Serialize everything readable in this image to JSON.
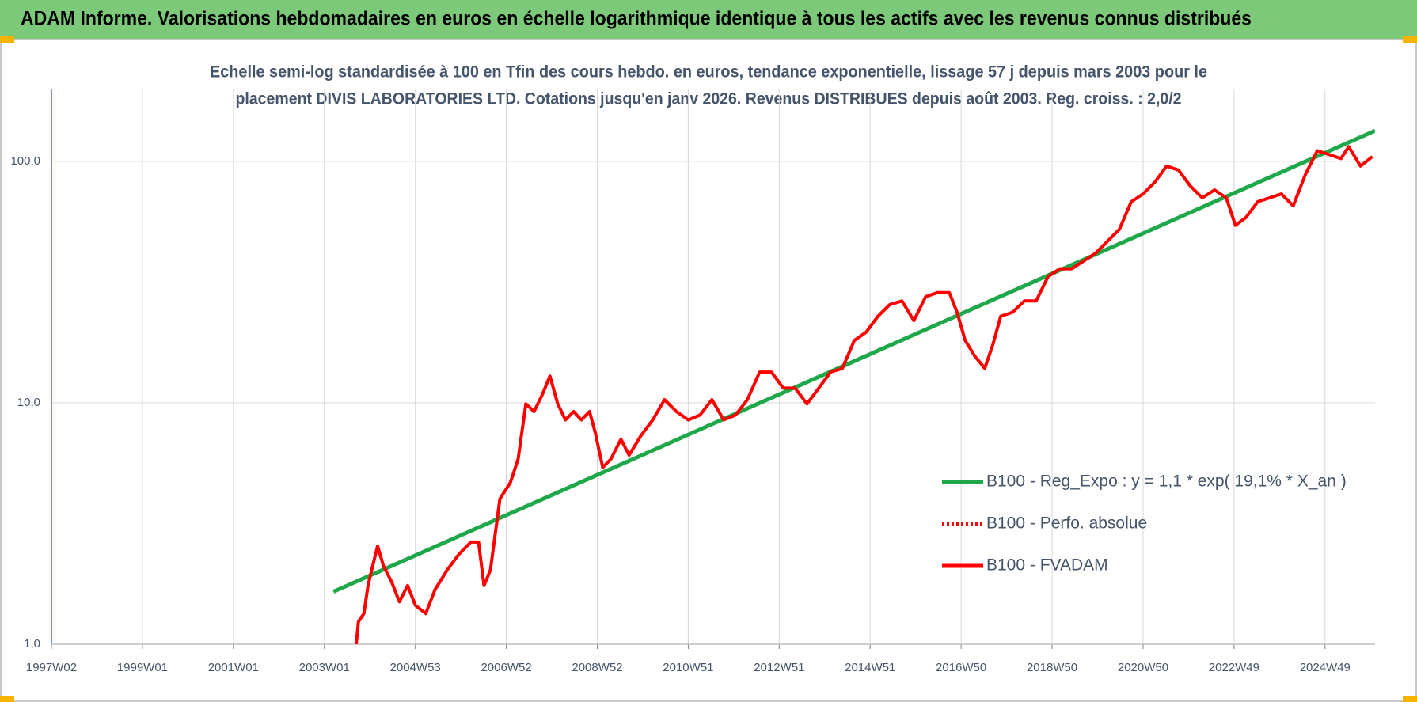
{
  "header_title": "ADAM Informe. Valorisations hebdomadaires en euros en échelle logarithmique identique à tous les actifs avec les revenus connus distribués",
  "chart_data": {
    "type": "line",
    "subtitle": [
      "Echelle semi-log standardisée à 100 en Tfin des cours hebdo. en euros, tendance exponentielle, lissage 57 j depuis mars 2003 pour le",
      "placement DIVIS LABORATORIES  LTD. Cotations jusqu'en janv 2026. Revenus DISTRIBUES depuis août 2003. Reg. croiss. : 2,0/2"
    ],
    "log_y": true,
    "grid": true,
    "legend": "right",
    "xlim": [
      1997,
      2026.1
    ],
    "xticks": [
      {
        "value": 1997,
        "label": "1997W02"
      },
      {
        "value": 1999,
        "label": "1999W01"
      },
      {
        "value": 2001,
        "label": "2001W01"
      },
      {
        "value": 2003,
        "label": "2003W01"
      },
      {
        "value": 2005,
        "label": "2004W53"
      },
      {
        "value": 2007,
        "label": "2006W52"
      },
      {
        "value": 2009,
        "label": "2008W52"
      },
      {
        "value": 2011,
        "label": "2010W51"
      },
      {
        "value": 2013,
        "label": "2012W51"
      },
      {
        "value": 2015,
        "label": "2014W51"
      },
      {
        "value": 2017,
        "label": "2016W50"
      },
      {
        "value": 2019,
        "label": "2018W50"
      },
      {
        "value": 2021,
        "label": "2020W50"
      },
      {
        "value": 2023,
        "label": "2022W49"
      },
      {
        "value": 2025,
        "label": "2024W49"
      }
    ],
    "ylim": [
      1,
      200
    ],
    "yticks": [
      {
        "value": 1,
        "label": "1,0"
      },
      {
        "value": 10,
        "label": "10,0"
      },
      {
        "value": 100,
        "label": "100,0"
      }
    ],
    "series": [
      {
        "name": "B100 - Reg_Expo : y = 1,1 * exp( 19,1% *  X_an )",
        "color": "#1fa84a",
        "dash": "solid",
        "width": 5,
        "x": [
          2003.2,
          2026.1
        ],
        "values": [
          1.65,
          134
        ]
      },
      {
        "name": "B100 - Perfo. absolue",
        "color": "#ff0000",
        "dash": "dotted",
        "width": 3,
        "x": [],
        "values": []
      },
      {
        "name": "B100 - FVADAM",
        "color": "#ff0000",
        "dash": "solid",
        "width": 4,
        "x": [
          2003.7,
          2003.75,
          2003.87,
          2003.96,
          2004.04,
          2004.17,
          2004.3,
          2004.48,
          2004.65,
          2004.83,
          2005.0,
          2005.23,
          2005.43,
          2005.7,
          2005.96,
          2006.22,
          2006.39,
          2006.51,
          2006.65,
          2006.86,
          2007.09,
          2007.26,
          2007.43,
          2007.61,
          2007.78,
          2007.96,
          2008.13,
          2008.3,
          2008.48,
          2008.65,
          2008.83,
          2008.95,
          2009.12,
          2009.3,
          2009.52,
          2009.7,
          2009.96,
          2010.22,
          2010.48,
          2010.74,
          2011.0,
          2011.26,
          2011.52,
          2011.78,
          2012.04,
          2012.3,
          2012.57,
          2012.83,
          2013.09,
          2013.35,
          2013.61,
          2013.87,
          2014.13,
          2014.39,
          2014.65,
          2014.91,
          2015.17,
          2015.43,
          2015.7,
          2015.96,
          2016.22,
          2016.48,
          2016.74,
          2016.91,
          2017.09,
          2017.3,
          2017.52,
          2017.7,
          2017.87,
          2018.13,
          2018.39,
          2018.65,
          2018.91,
          2019.17,
          2019.43,
          2019.7,
          2019.96,
          2020.22,
          2020.48,
          2020.74,
          2021.0,
          2021.26,
          2021.52,
          2021.78,
          2022.04,
          2022.3,
          2022.57,
          2022.83,
          2023.03,
          2023.26,
          2023.52,
          2023.78,
          2024.04,
          2024.3,
          2024.57,
          2024.83,
          2025.09,
          2025.35,
          2025.52,
          2025.78,
          2026.04
        ],
        "values": [
          1.0,
          1.24,
          1.34,
          1.75,
          2.03,
          2.55,
          2.11,
          1.81,
          1.5,
          1.75,
          1.45,
          1.34,
          1.68,
          2.03,
          2.36,
          2.65,
          2.65,
          1.75,
          2.03,
          4.0,
          4.67,
          5.85,
          9.9,
          9.2,
          10.7,
          12.9,
          9.9,
          8.5,
          9.2,
          8.5,
          9.2,
          7.6,
          5.4,
          5.85,
          7.07,
          6.07,
          7.3,
          8.5,
          10.3,
          9.2,
          8.5,
          8.9,
          10.3,
          8.5,
          8.9,
          10.3,
          13.4,
          13.4,
          11.5,
          11.5,
          9.9,
          11.5,
          13.4,
          13.9,
          18.1,
          19.6,
          22.8,
          25.5,
          26.4,
          21.9,
          27.5,
          28.6,
          28.6,
          23.7,
          18.1,
          15.6,
          13.9,
          17.5,
          22.8,
          23.7,
          26.4,
          26.4,
          33.3,
          35.9,
          35.9,
          38.7,
          41.7,
          46.7,
          52.3,
          68.0,
          73.3,
          82.1,
          95.6,
          91.9,
          79.0,
          70.6,
          76.1,
          70.6,
          54.3,
          58.5,
          68.0,
          70.6,
          73.3,
          65.4,
          88.4,
          110.6,
          106.6,
          102.6,
          115,
          95.6,
          104.6
        ]
      }
    ]
  }
}
